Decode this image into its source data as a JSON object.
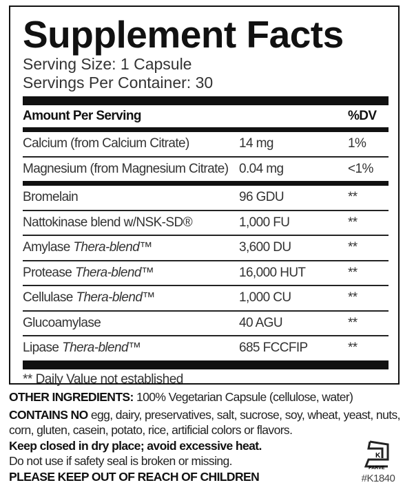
{
  "title": "Supplement Facts",
  "serving_size": "Serving Size: 1 Capsule",
  "servings_per_container": "Servings Per Container: 30",
  "header": {
    "amount": "Amount Per Serving",
    "dv": "%DV"
  },
  "rows": [
    {
      "name": "Calcium (from Calcium Citrate)",
      "amount": "14 mg",
      "dv": "1%"
    },
    {
      "name": "Magnesium (from Magnesium Citrate)",
      "amount": "0.04 mg",
      "dv": "<1%"
    },
    {
      "name": "Bromelain",
      "amount": "96 GDU",
      "dv": "**"
    },
    {
      "name": "Nattokinase blend w/NSK-SD®",
      "amount": "1,000 FU",
      "dv": "**"
    },
    {
      "name": "Amylase",
      "name_italic": "Thera-blend™",
      "amount": "3,600 DU",
      "dv": "**"
    },
    {
      "name": "Protease",
      "name_italic": "Thera-blend™",
      "amount": "16,000 HUT",
      "dv": "**"
    },
    {
      "name": "Cellulase",
      "name_italic": "Thera-blend™",
      "amount": "1,000 CU",
      "dv": "**"
    },
    {
      "name": "Glucoamylase",
      "amount": "40 AGU",
      "dv": "**"
    },
    {
      "name": "Lipase",
      "name_italic": "Thera-blend™",
      "amount": "685 FCCFIP",
      "dv": "**"
    }
  ],
  "footnote": "** Daily Value not established",
  "other_label": "OTHER INGREDIENTS:",
  "other_text": "100% Vegetarian Capsule (cellulose, water)",
  "contains_label": "CONTAINS NO",
  "contains_text": "egg, dairy, preservatives, salt, sucrose, soy, wheat, yeast, nuts, corn, gluten, casein, potato, rice, artificial colors or flavors.",
  "storage": "Keep closed in dry place; avoid excessive heat.",
  "seal": "Do not use if safety seal is broken or missing.",
  "children": "PLEASE KEEP OUT OF REACH OF CHILDREN",
  "kosher": {
    "logo_text": "K PARVE",
    "id": "#K1840"
  }
}
